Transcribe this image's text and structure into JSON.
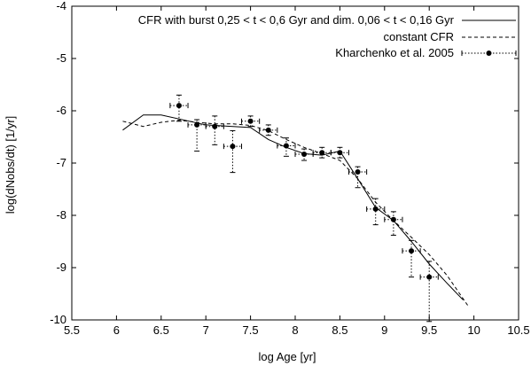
{
  "chart_data": {
    "type": "line",
    "xlabel": "log Age [yr]",
    "ylabel": "log(dNobs/dt) [1/yr]",
    "xlim": [
      5.5,
      10.5
    ],
    "ylim": [
      -10,
      -4
    ],
    "xticks": [
      5.5,
      6,
      6.5,
      7,
      7.5,
      8,
      8.5,
      9,
      9.5,
      10,
      10.5
    ],
    "yticks": [
      -10,
      -9,
      -8,
      -7,
      -6,
      -5,
      -4
    ],
    "xtick_labels": [
      "5.5",
      "6",
      "6.5",
      "7",
      "7.5",
      "8",
      "8.5",
      "9",
      "9.5",
      "10",
      "10.5"
    ],
    "ytick_labels": [
      "-10",
      "-9",
      "-8",
      "-7",
      "-6",
      "-5",
      "-4"
    ],
    "grid": false,
    "legend_position": "top-right",
    "series": [
      {
        "name": "CFR with burst 0,25 < t < 0,6 Gyr and dim. 0,06 < t < 0,16 Gyr",
        "style": "solid",
        "x": [
          6.07,
          6.3,
          6.5,
          7.0,
          7.5,
          7.7,
          7.9,
          8.1,
          8.3,
          8.5,
          8.7,
          8.9,
          9.1,
          9.3,
          9.5,
          9.7,
          9.88
        ],
        "y": [
          -6.37,
          -6.08,
          -6.08,
          -6.27,
          -6.32,
          -6.55,
          -6.7,
          -6.82,
          -6.85,
          -6.77,
          -7.3,
          -7.85,
          -8.1,
          -8.5,
          -8.93,
          -9.3,
          -9.62
        ]
      },
      {
        "name": "constant CFR",
        "style": "dashed",
        "x": [
          6.07,
          6.3,
          6.5,
          6.7,
          6.9,
          7.1,
          7.3,
          7.5,
          7.7,
          7.9,
          8.1,
          8.3,
          8.5,
          8.7,
          8.9,
          9.1,
          9.3,
          9.5,
          9.7,
          9.93
        ],
        "y": [
          -6.2,
          -6.3,
          -6.22,
          -6.18,
          -6.22,
          -6.25,
          -6.25,
          -6.28,
          -6.38,
          -6.55,
          -6.7,
          -6.82,
          -6.95,
          -7.3,
          -7.75,
          -8.1,
          -8.42,
          -8.75,
          -9.15,
          -9.72
        ]
      },
      {
        "name": "Kharchenko et al. 2005",
        "style": "points-errorbars",
        "x": [
          6.7,
          6.9,
          7.1,
          7.3,
          7.5,
          7.7,
          7.9,
          8.1,
          8.3,
          8.5,
          8.7,
          8.9,
          9.1,
          9.3,
          9.5
        ],
        "y": [
          -5.9,
          -6.27,
          -6.3,
          -6.68,
          -6.2,
          -6.37,
          -6.67,
          -6.83,
          -6.8,
          -6.8,
          -7.17,
          -7.88,
          -8.08,
          -8.68,
          -9.18
        ],
        "y_err_low": [
          0.3,
          0.5,
          0.35,
          0.5,
          0.1,
          0.1,
          0.2,
          0.12,
          0.1,
          0.1,
          0.3,
          0.3,
          0.3,
          0.5,
          0.85
        ],
        "y_err_high": [
          0.2,
          0.1,
          0.2,
          0.3,
          0.1,
          0.1,
          0.15,
          0.1,
          0.1,
          0.1,
          0.1,
          0.2,
          0.15,
          0.2,
          0.3
        ],
        "x_err": 0.1
      }
    ]
  }
}
